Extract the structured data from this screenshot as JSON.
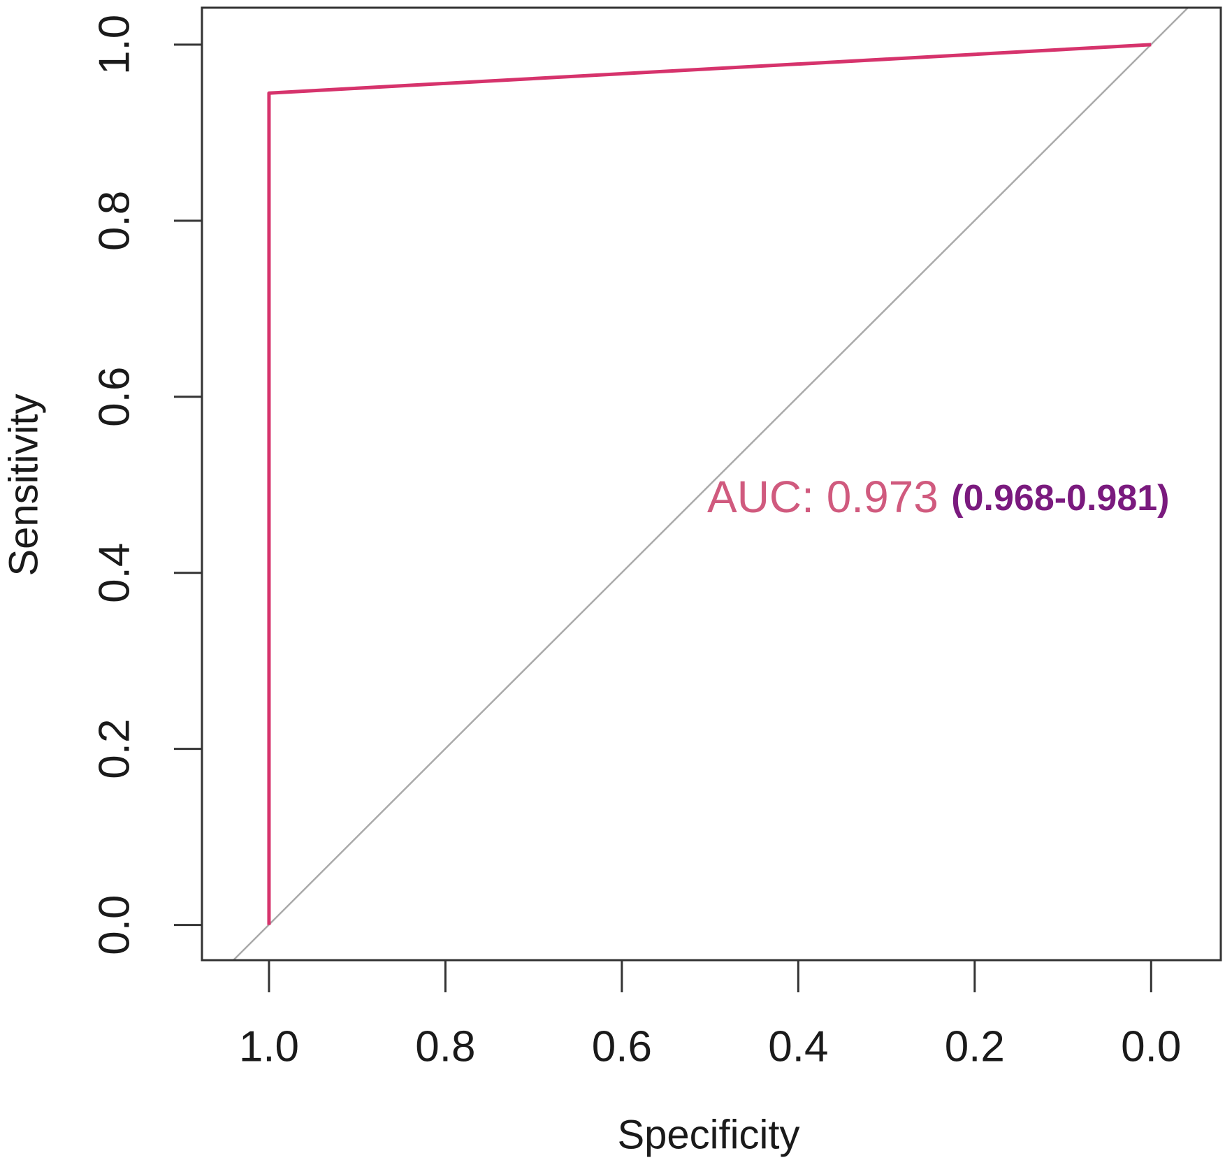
{
  "chart_data": {
    "type": "line",
    "x_label": "Specificity",
    "y_label": "Sensitivity",
    "x": [
      1,
      1,
      0
    ],
    "series": [
      {
        "color": "#d6336c",
        "values": [
          0,
          0.945,
          1
        ]
      }
    ],
    "xlim": [
      1.076,
      -0.079
    ],
    "ylim": [
      -0.04,
      1.042
    ],
    "xticks": [
      {
        "value": 1,
        "label": "1.0"
      },
      0.8,
      0.6,
      0.4,
      0.2,
      {
        "value": 0,
        "label": "0.0"
      }
    ],
    "yticks": [
      {
        "value": 0,
        "label": "0.0"
      },
      0.2,
      0.4,
      0.6,
      0.8,
      {
        "value": 1,
        "label": "1.0"
      }
    ],
    "annotations": [
      "AUC: 0.973",
      "(0.968-0.981)"
    ]
  }
}
